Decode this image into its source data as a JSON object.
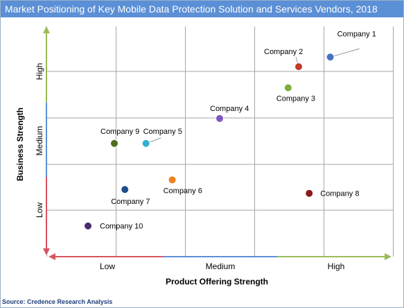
{
  "title": "Market Positioning of Key Mobile Data Protection Solution and Services Vendors, 2018",
  "source": "Source: Credence Research Analysis",
  "colors": {
    "title_bar": "#5b8fd6",
    "grid": "#a6a6a6",
    "axis_red": "#d9535f",
    "axis_blue": "#5b8fd6",
    "axis_green": "#9bbb59"
  },
  "chart_data": {
    "type": "scatter",
    "xlabel": "Product Offering Strength",
    "ylabel": "Business Strength",
    "x_categories": [
      "Low",
      "Medium",
      "High"
    ],
    "y_categories": [
      "Low",
      "Medium",
      "High"
    ],
    "xlim": [
      0,
      10
    ],
    "ylim": [
      0,
      6
    ],
    "grid": true,
    "points": [
      {
        "label": "Company 1",
        "x": 9.2,
        "y": 5.2,
        "color": "#4472c4"
      },
      {
        "label": "Company 2",
        "x": 8.0,
        "y": 4.95,
        "color": "#c0392b"
      },
      {
        "label": "Company 3",
        "x": 7.6,
        "y": 4.4,
        "color": "#7fae3a"
      },
      {
        "label": "Company 4",
        "x": 5.0,
        "y": 3.6,
        "color": "#7e57c2"
      },
      {
        "label": "Company 5",
        "x": 2.2,
        "y": 2.95,
        "color": "#31b0d5"
      },
      {
        "label": "Company 6",
        "x": 3.2,
        "y": 2.0,
        "color": "#f0811e"
      },
      {
        "label": "Company 7",
        "x": 1.4,
        "y": 1.75,
        "color": "#1f4e8c"
      },
      {
        "label": "Company 8",
        "x": 8.4,
        "y": 1.65,
        "color": "#8b1a1a"
      },
      {
        "label": "Company 9",
        "x": 1.0,
        "y": 2.95,
        "color": "#4e6b1e"
      },
      {
        "label": "Company 10",
        "x": 0.0,
        "y": 0.8,
        "color": "#4b2e6e"
      }
    ]
  }
}
